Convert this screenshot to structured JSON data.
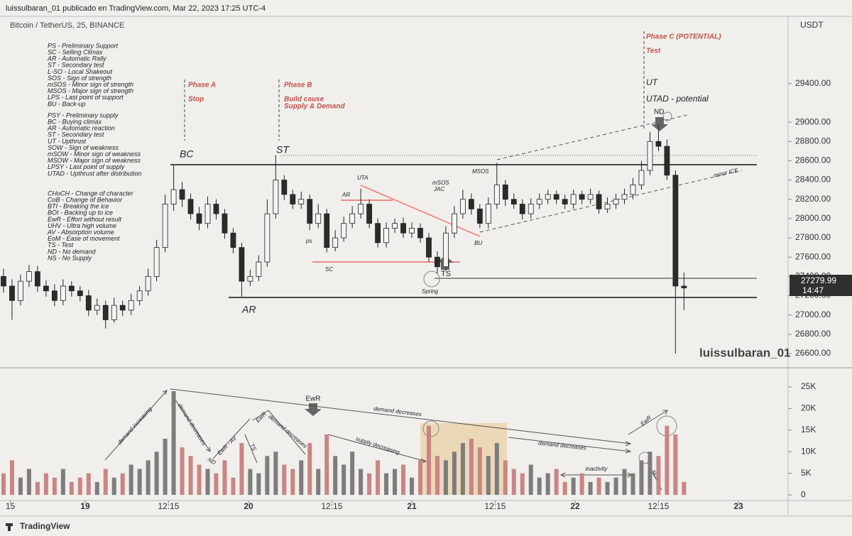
{
  "header": {
    "publisher": "luissulbaran_01 publicado en TradingView.com, Mar 22, 2023 17:25 UTC-4",
    "symbol": "Bitcoin / TetherUS, 25, BINANCE",
    "footer": "TradingView"
  },
  "chart_data": {
    "type": "candlestick",
    "y_axis_label": "USDT",
    "countdown": "14:47",
    "watermark": "luissulbaran_01",
    "up_color": "#f4f4f2",
    "down_color": "#2b2b2b",
    "wick_color": "#222222",
    "volume_up_color": "#7d7d7d",
    "volume_down_color": "#c98585",
    "xlim": [
      -12.52,
      103.3
    ],
    "xticks": [
      {
        "value": -11,
        "label": "15"
      },
      {
        "value": 0,
        "label": "19"
      },
      {
        "value": 12.25,
        "label": "12:15"
      },
      {
        "value": 24,
        "label": "20"
      },
      {
        "value": 36.25,
        "label": "12:15"
      },
      {
        "value": 48,
        "label": "21"
      },
      {
        "value": 60.25,
        "label": "12:15"
      },
      {
        "value": 72,
        "label": "22"
      },
      {
        "value": 84.25,
        "label": "12:15"
      },
      {
        "value": 96,
        "label": "23"
      }
    ],
    "ylim": [
      26460,
      30098
    ],
    "yticks": [
      {
        "value": 26600,
        "label": "26600.00"
      },
      {
        "value": 26800,
        "label": "26800.00"
      },
      {
        "value": 27000,
        "label": "27000.00"
      },
      {
        "value": 27200,
        "label": "27200.00"
      },
      {
        "value": 27400,
        "label": "27400.00"
      },
      {
        "value": 27600,
        "label": "27600.00"
      },
      {
        "value": 27800,
        "label": "27800.00"
      },
      {
        "value": 28000,
        "label": "28000.00"
      },
      {
        "value": 28200,
        "label": "28200.00"
      },
      {
        "value": 28400,
        "label": "28400.00"
      },
      {
        "value": 28600,
        "label": "28600.00"
      },
      {
        "value": 28800,
        "label": "28800.00"
      },
      {
        "value": 29000,
        "label": "29000.00"
      },
      {
        "value": 29400,
        "label": "29400.00"
      }
    ],
    "volume_ylim": [
      -1300,
      29100
    ],
    "volume_yticks": [
      0,
      {
        "value": 5000,
        "label": "5K"
      },
      {
        "value": 10000,
        "label": "10K"
      },
      {
        "value": 15000,
        "label": "15K"
      },
      {
        "value": 20000,
        "label": "20K"
      },
      {
        "value": 25000,
        "label": "25K"
      }
    ],
    "x": [
      -12,
      -10.75,
      -9.5,
      -8.25,
      -7,
      -5.75,
      -4.5,
      -3.25,
      -2,
      -0.75,
      0.5,
      1.75,
      3,
      4.25,
      5.5,
      6.75,
      8,
      9.25,
      10.5,
      11.75,
      13,
      14.25,
      15.5,
      16.75,
      18,
      19.25,
      20.5,
      21.75,
      23,
      24.25,
      25.5,
      26.75,
      28,
      29.25,
      30.5,
      31.75,
      33,
      34.25,
      35.5,
      36.75,
      38,
      39.25,
      40.5,
      41.75,
      43,
      44.25,
      45.5,
      46.75,
      48,
      49.25,
      50.5,
      51.75,
      53,
      54.25,
      55.5,
      56.75,
      58,
      59.25,
      60.5,
      61.75,
      63,
      64.25,
      65.5,
      66.75,
      68,
      69.25,
      70.5,
      71.75,
      73,
      74.25,
      75.5,
      76.75,
      78,
      79.25,
      80.5,
      81.75,
      83,
      84.25,
      85.5,
      86.75,
      88
    ],
    "open": [
      27400,
      27300,
      27150,
      27350,
      27450,
      27300,
      27250,
      27150,
      27300,
      27250,
      27200,
      27050,
      27100,
      26950,
      27100,
      27050,
      27150,
      27250,
      27400,
      27700,
      28150,
      28300,
      28200,
      28050,
      27950,
      28150,
      28050,
      27850,
      27700,
      27350,
      27400,
      27550,
      28050,
      28400,
      28250,
      28150,
      28200,
      27950,
      28050,
      27700,
      27800,
      27950,
      28050,
      28150,
      27950,
      27750,
      27900,
      27950,
      27850,
      27900,
      27800,
      27600,
      27500,
      27850,
      28050,
      28200,
      28100,
      27950,
      28150,
      28350,
      28200,
      28150,
      28050,
      28150,
      28200,
      28250,
      28200,
      28150,
      28250,
      28200,
      28250,
      28100,
      28150,
      28200,
      28250,
      28350,
      28500,
      28800,
      28750,
      28450,
      27300
    ],
    "high": [
      27480,
      27370,
      27420,
      27520,
      27510,
      27360,
      27320,
      27370,
      27350,
      27300,
      27260,
      27170,
      27150,
      27180,
      27150,
      27220,
      27300,
      27480,
      27780,
      28250,
      28550,
      28380,
      28260,
      28120,
      28230,
      28200,
      28100,
      27900,
      27750,
      27470,
      27620,
      28200,
      28660,
      28450,
      28300,
      28280,
      28250,
      28150,
      28100,
      27880,
      28020,
      28130,
      28310,
      28200,
      28000,
      27960,
      28000,
      28010,
      27960,
      27950,
      27850,
      27660,
      27920,
      28130,
      28300,
      28260,
      28150,
      28220,
      28580,
      28400,
      28260,
      28200,
      28210,
      28260,
      28300,
      28290,
      28250,
      28300,
      28290,
      28310,
      28290,
      28220,
      28260,
      28310,
      28420,
      28600,
      28900,
      28975,
      28820,
      28500,
      27440
    ],
    "low": [
      27230,
      26950,
      27100,
      27290,
      27240,
      27190,
      27090,
      27100,
      27190,
      27140,
      26990,
      27000,
      26860,
      26920,
      26990,
      27000,
      27100,
      27200,
      27350,
      27650,
      28080,
      28120,
      27990,
      27880,
      27900,
      27990,
      27790,
      27640,
      27190,
      27300,
      27350,
      27500,
      28000,
      28190,
      28100,
      28100,
      27880,
      27900,
      27650,
      27660,
      27760,
      27900,
      28000,
      27900,
      27700,
      27700,
      27850,
      27800,
      27800,
      27750,
      27550,
      27430,
      27460,
      27800,
      28000,
      28040,
      27900,
      27900,
      28100,
      28130,
      28100,
      27990,
      28000,
      28100,
      28150,
      28150,
      28100,
      28100,
      28150,
      28150,
      28050,
      28060,
      28100,
      28150,
      28200,
      28300,
      28450,
      28700,
      28400,
      26600,
      27050
    ],
    "close": [
      27300,
      27150,
      27350,
      27450,
      27300,
      27250,
      27150,
      27300,
      27250,
      27200,
      27050,
      27100,
      26950,
      27100,
      27050,
      27150,
      27250,
      27400,
      27700,
      28150,
      28300,
      28200,
      28050,
      27950,
      28150,
      28050,
      27850,
      27700,
      27350,
      27400,
      27550,
      28050,
      28400,
      28250,
      28150,
      28200,
      27950,
      28050,
      27700,
      27800,
      27950,
      28050,
      28150,
      27950,
      27750,
      27900,
      27950,
      27850,
      27900,
      27800,
      27600,
      27500,
      27850,
      28050,
      28200,
      28100,
      27950,
      28150,
      28350,
      28200,
      28150,
      28050,
      28150,
      28200,
      28250,
      28200,
      28150,
      28250,
      28200,
      28250,
      28100,
      28150,
      28200,
      28250,
      28350,
      28500,
      28800,
      28750,
      28450,
      27300,
      27279.99
    ],
    "volume": [
      5000,
      8000,
      4000,
      6000,
      3000,
      5000,
      4000,
      6000,
      3000,
      4000,
      5000,
      3000,
      6000,
      4000,
      5000,
      7000,
      6000,
      8000,
      10000,
      13000,
      24000,
      11000,
      9000,
      7000,
      6000,
      5000,
      8000,
      4000,
      12000,
      6000,
      5000,
      9000,
      10000,
      7000,
      6000,
      8000,
      12000,
      6000,
      14000,
      9000,
      7000,
      10000,
      6000,
      5000,
      8000,
      5000,
      6000,
      7000,
      4000,
      8000,
      16000,
      9000,
      8000,
      10000,
      12000,
      13000,
      11000,
      9000,
      12000,
      8000,
      6000,
      5000,
      7000,
      4000,
      5000,
      6000,
      3000,
      4000,
      5000,
      3000,
      4000,
      3000,
      4000,
      6000,
      5000,
      8000,
      10000,
      9000,
      16000,
      14000,
      3000
    ],
    "glossary": [
      [
        "PS - Preliminary Support",
        "SC - Selling Climax",
        "AR - Automatic Rally",
        "ST - Secondary test",
        "L-SO - Local Shakeout",
        "SOS - Sign of strength",
        "mSOS - Minor sign of strength",
        "MSOS - Major sign of strength",
        "LPS - Last point of support",
        "BU - Back-up"
      ],
      [
        "PSY - Preliminary supply",
        "BC - Buying climax",
        "AR - Automatic reaction",
        "ST - Secondary test",
        "UT - Upthrust",
        "SOW - Sign of weakness",
        "mSOW - Minor sign of weakness",
        "MSOW - Major sign of weakness",
        "LPSY - Last point of supply",
        "UTAD - Upthrust after distribution"
      ],
      [
        "CHoCH - Change of character",
        "CoB - Change of Behavior",
        "BTI - Breaking the ice",
        "BOI - Backing up to ice",
        "EwR - Effort without result",
        "UHV - Ultra high volume",
        "AV - Absorption volume",
        "EoM - Ease of movement",
        "TS - Test",
        "ND - No demand",
        "NS - No Supply"
      ]
    ],
    "annotations": [
      "Phase A",
      "Stop",
      "Phase B",
      "Build cause",
      "Supply & Demand",
      "Phase C (POTENTIAL)",
      "Test",
      "UT",
      "UTAD - potential",
      "ND",
      "BC",
      "ST",
      "AR",
      "UTA",
      "AR",
      "ps",
      "SC",
      "mSOS",
      "JAC",
      "MSOS",
      "BU",
      "TS",
      "Spring",
      "minor ICE"
    ],
    "volume_annotations": [
      "demand increasing",
      "demand decreases",
      "EwR - AV",
      "ND",
      "EwR",
      "demand decreases",
      "TS",
      "EwR",
      "supply decreasing",
      "demand decreases",
      "demand decreases",
      "inactivity",
      "EwR",
      "ND"
    ]
  }
}
